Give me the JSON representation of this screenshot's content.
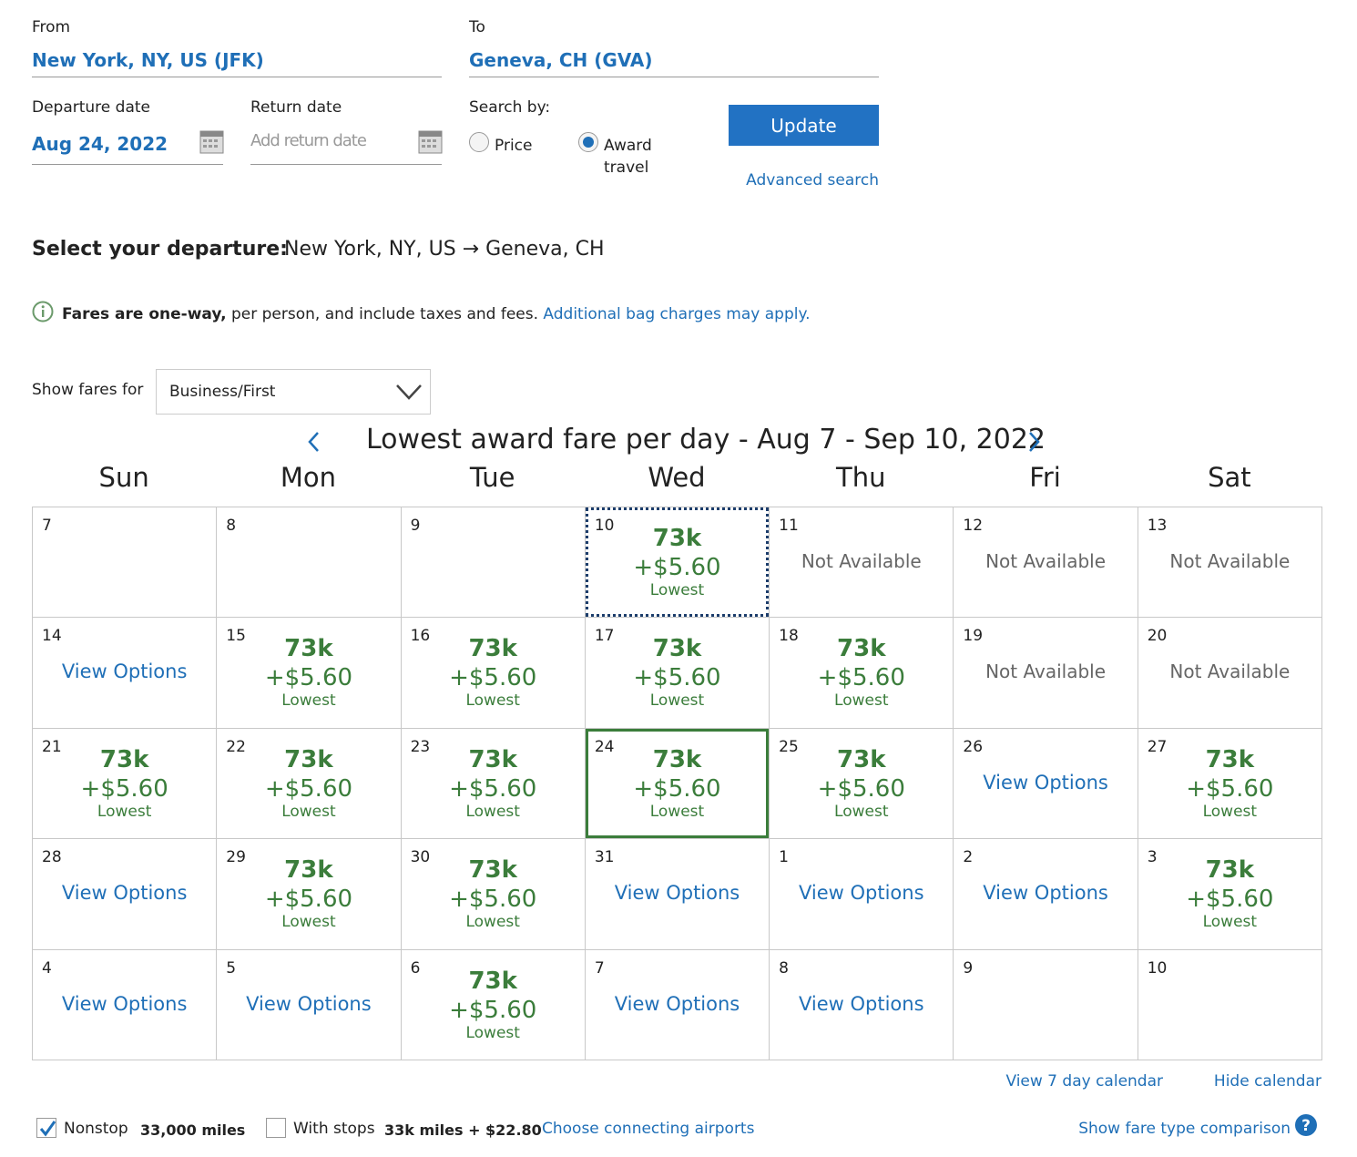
{
  "search": {
    "from_label": "From",
    "from_value": "New York, NY, US (JFK)",
    "to_label": "To",
    "to_value": "Geneva, CH (GVA)",
    "departure_label": "Departure date",
    "departure_value": "Aug 24, 2022",
    "return_label": "Return date",
    "return_placeholder": "Add return date",
    "search_by_label": "Search by:",
    "options": [
      {
        "label": "Price",
        "checked": false
      },
      {
        "label": "Award travel",
        "checked": true
      }
    ],
    "update": "Update",
    "advanced": "Advanced search"
  },
  "heading": {
    "label": "Select your departure:",
    "route": "New York, NY, US → Geneva, CH"
  },
  "notice": {
    "bold": "Fares are one-way,",
    "text": "per person, and include taxes and fees.",
    "link": "Additional bag charges may apply."
  },
  "filter": {
    "label": "Show fares for",
    "value": "Business/First"
  },
  "calendar": {
    "title": "Lowest award fare per day - Aug 7 - Sep 10, 2022",
    "weekdays": [
      "Sun",
      "Mon",
      "Tue",
      "Wed",
      "Thu",
      "Fri",
      "Sat"
    ],
    "weeks": [
      [
        {
          "day": 7
        },
        {
          "day": 8
        },
        {
          "day": 9
        },
        {
          "day": 10,
          "miles": "73k",
          "taxes": "+$5.60",
          "tag": "Lowest",
          "focused": true
        },
        {
          "day": 11,
          "status": "Not Available"
        },
        {
          "day": 12,
          "status": "Not Available"
        },
        {
          "day": 13,
          "status": "Not Available"
        }
      ],
      [
        {
          "day": 14,
          "link": "View Options"
        },
        {
          "day": 15,
          "miles": "73k",
          "taxes": "+$5.60",
          "tag": "Lowest"
        },
        {
          "day": 16,
          "miles": "73k",
          "taxes": "+$5.60",
          "tag": "Lowest"
        },
        {
          "day": 17,
          "miles": "73k",
          "taxes": "+$5.60",
          "tag": "Lowest"
        },
        {
          "day": 18,
          "miles": "73k",
          "taxes": "+$5.60",
          "tag": "Lowest"
        },
        {
          "day": 19,
          "status": "Not Available"
        },
        {
          "day": 20,
          "status": "Not Available"
        }
      ],
      [
        {
          "day": 21,
          "miles": "73k",
          "taxes": "+$5.60",
          "tag": "Lowest"
        },
        {
          "day": 22,
          "miles": "73k",
          "taxes": "+$5.60",
          "tag": "Lowest"
        },
        {
          "day": 23,
          "miles": "73k",
          "taxes": "+$5.60",
          "tag": "Lowest"
        },
        {
          "day": 24,
          "miles": "73k",
          "taxes": "+$5.60",
          "tag": "Lowest",
          "selected": true
        },
        {
          "day": 25,
          "miles": "73k",
          "taxes": "+$5.60",
          "tag": "Lowest"
        },
        {
          "day": 26,
          "link": "View Options"
        },
        {
          "day": 27,
          "miles": "73k",
          "taxes": "+$5.60",
          "tag": "Lowest"
        }
      ],
      [
        {
          "day": 28,
          "link": "View Options"
        },
        {
          "day": 29,
          "miles": "73k",
          "taxes": "+$5.60",
          "tag": "Lowest"
        },
        {
          "day": 30,
          "miles": "73k",
          "taxes": "+$5.60",
          "tag": "Lowest"
        },
        {
          "day": 31,
          "link": "View Options"
        },
        {
          "day": 1,
          "link": "View Options"
        },
        {
          "day": 2,
          "link": "View Options"
        },
        {
          "day": 3,
          "miles": "73k",
          "taxes": "+$5.60",
          "tag": "Lowest"
        }
      ],
      [
        {
          "day": 4,
          "link": "View Options"
        },
        {
          "day": 5,
          "link": "View Options"
        },
        {
          "day": 6,
          "miles": "73k",
          "taxes": "+$5.60",
          "tag": "Lowest"
        },
        {
          "day": 7,
          "link": "View Options"
        },
        {
          "day": 8,
          "link": "View Options"
        },
        {
          "day": 9
        },
        {
          "day": 10
        }
      ]
    ]
  },
  "footer": {
    "view7": "View 7 day calendar",
    "hide": "Hide calendar",
    "nonstop_label": "Nonstop",
    "nonstop_checked": true,
    "nonstop_miles": "33,000 miles",
    "stops_label": "With stops",
    "stops_checked": false,
    "stops_miles": "33k miles + $22.80",
    "connecting": "Choose connecting airports",
    "comparison": "Show fare type comparison"
  }
}
